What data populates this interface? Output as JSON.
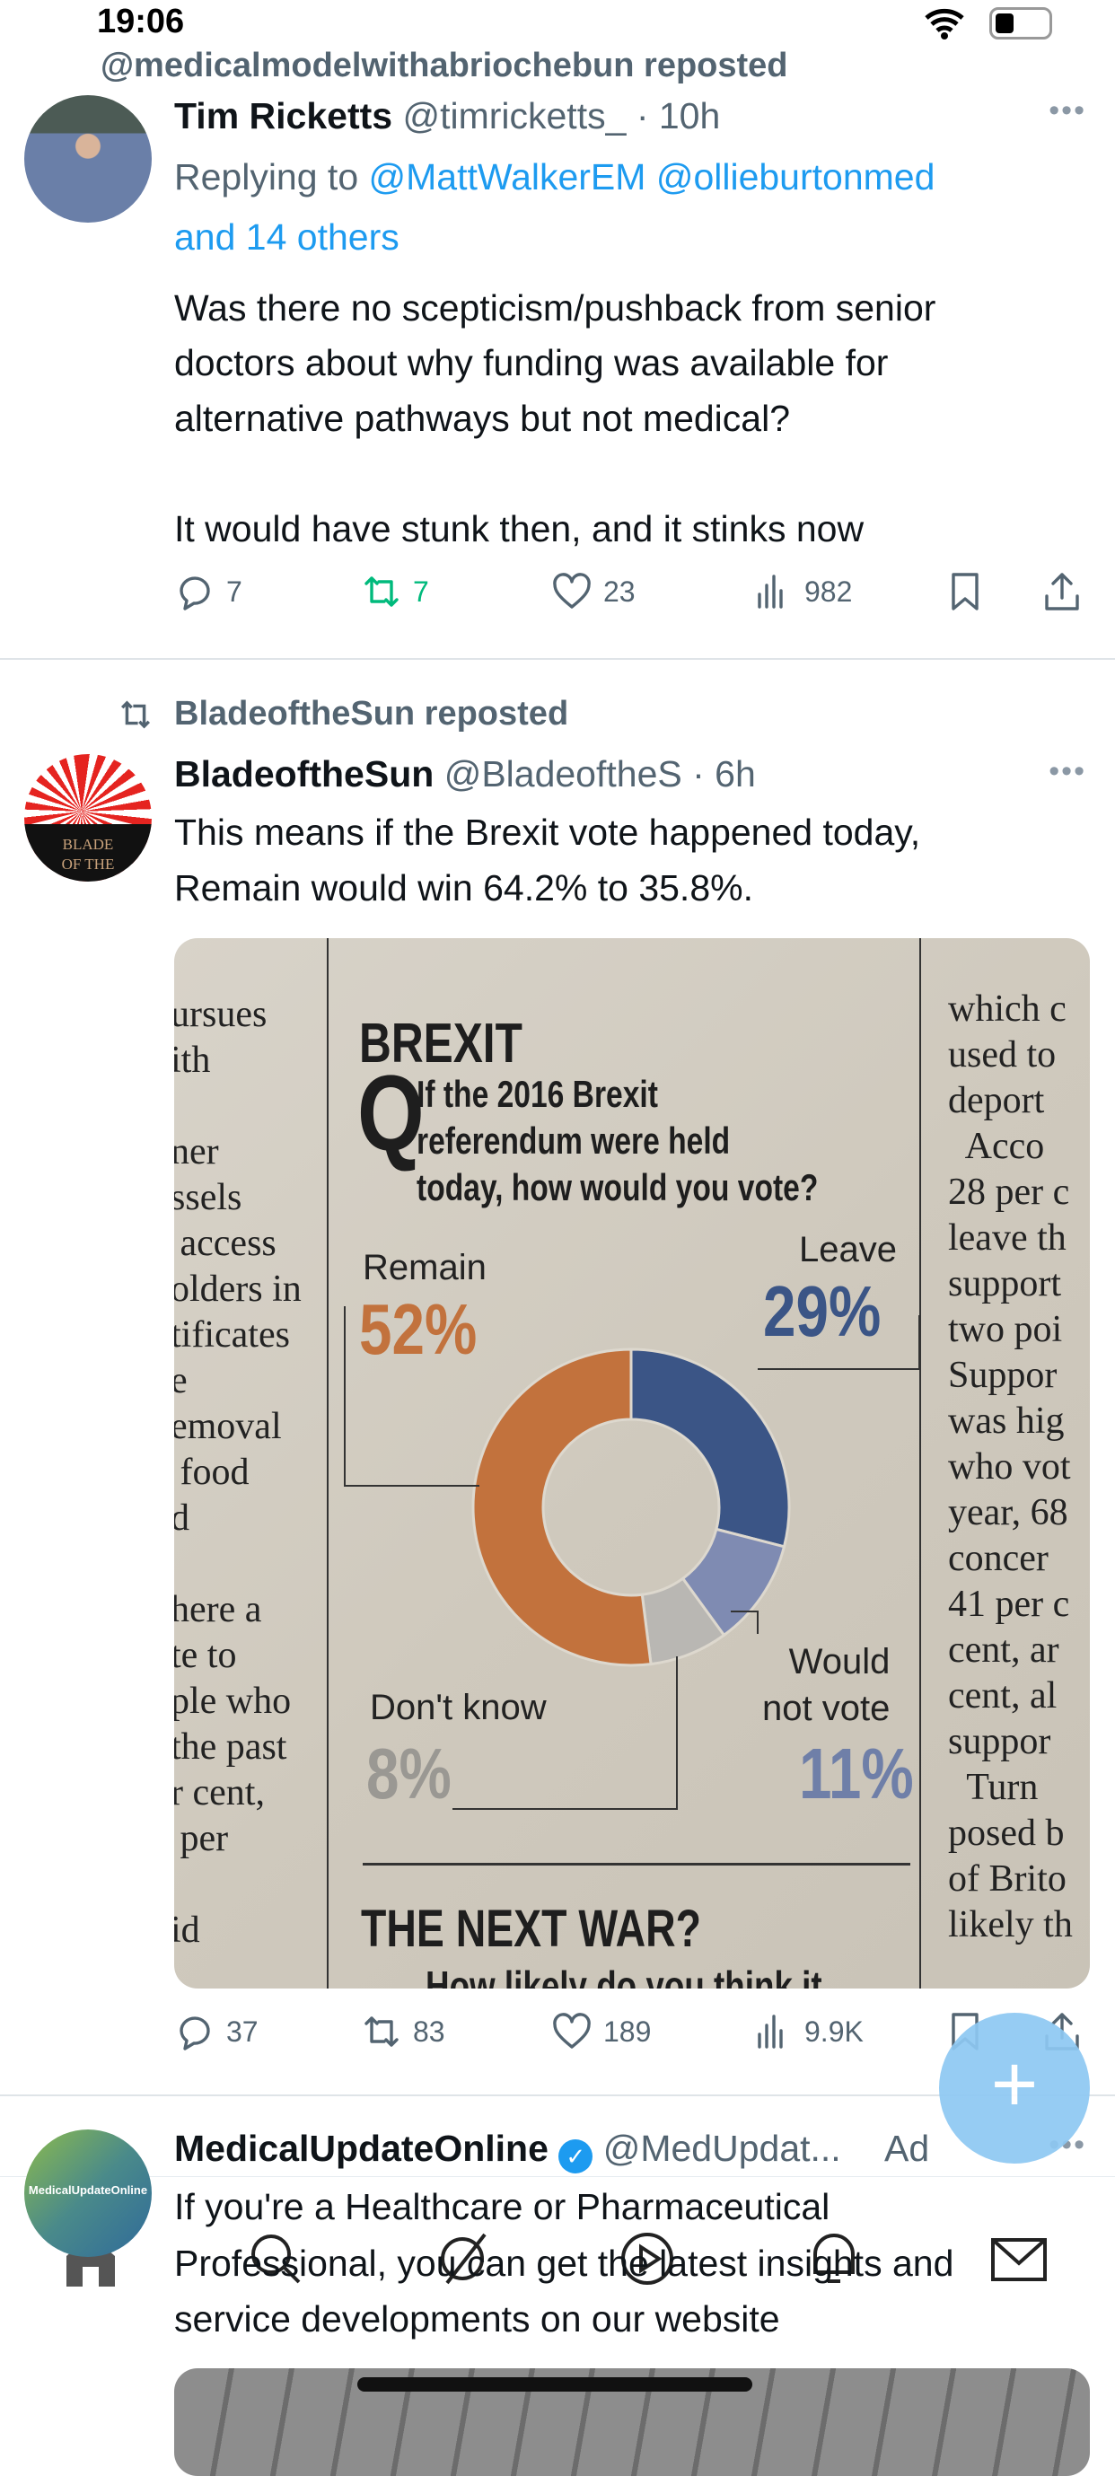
{
  "status_bar": {
    "time": "19:06",
    "wifi_icon": "wifi-icon",
    "battery_icon": "battery-icon"
  },
  "top_repost": {
    "text": "@medicalmodelwithabriochebun reposted"
  },
  "tweets": [
    {
      "display_name": "Tim Ricketts",
      "handle": "@timricketts_",
      "time": "· 10h",
      "replying_prefix": "Replying to",
      "replying_to": "@MattWalkerEM @ollieburtonmed",
      "replying_more": "and 14 others",
      "body": [
        "Was there no scepticism/pushback from senior",
        "doctors about why funding was available for",
        "alternative pathways but not medical?",
        "It would have stunk then, and it stinks now"
      ],
      "replies": "7",
      "reposts": "7",
      "likes": "23",
      "views": "982",
      "reposted_by_me": true
    },
    {
      "repost_label": "BladeoftheSun reposted",
      "display_name": "BladeoftheSun",
      "handle": "@BladeoftheS",
      "time": "· 6h",
      "avatar_text": [
        "BLADE",
        "OF THE"
      ],
      "body": [
        "This means if the Brexit vote happened today,",
        "Remain would win 64.2% to 35.8%."
      ],
      "replies": "37",
      "reposts": "83",
      "likes": "189",
      "views": "9.9K"
    },
    {
      "display_name": "MedicalUpdateOnline",
      "verified": true,
      "handle": "@MedUpdat...",
      "ad_label": "Ad",
      "avatar_text": "MedicalUpdateOnline",
      "body": [
        "If you're a Healthcare or Pharmaceutical",
        "Professional, you can get the latest insights and",
        "service developments on our website"
      ]
    }
  ],
  "newspaper": {
    "heading": "BREXIT",
    "q_mark": "Q",
    "question": [
      "If the 2016 Brexit",
      "referendum were held",
      "today, how would you vote?"
    ],
    "next_heading": "THE NEXT WAR?",
    "next_question": "How likely do you think it",
    "left_column": [
      "ursues",
      "ith",
      "",
      "ner",
      "ssels",
      " access",
      "olders in",
      "tificates",
      "e",
      "emoval",
      " food",
      "d",
      "",
      "here a",
      "te to",
      "ple who",
      "the past",
      "r cent,",
      " per",
      "",
      "id"
    ],
    "right_column": [
      "which c",
      "used to",
      "deport",
      "  Acco",
      "28 per c",
      "leave th",
      "support",
      "two poi",
      "Suppor",
      "was hig",
      "who vot",
      "year, 68",
      "concer",
      "41 per c",
      "cent, ar",
      "cent, al",
      "suppor",
      "  Turn",
      "posed b",
      "of Brito",
      "likely th"
    ],
    "chart_data": {
      "type": "pie",
      "donut": true,
      "title": "If the 2016 Brexit referendum were held today, how would you vote?",
      "categories": [
        "Leave",
        "Would not vote",
        "Don't know",
        "Remain"
      ],
      "values": [
        29,
        11,
        8,
        52
      ],
      "labels": [
        "29%",
        "11%",
        "8%",
        "52%"
      ],
      "label_names": [
        "Leave",
        "Would\nnot vote",
        "Don't know",
        "Remain"
      ],
      "colors": [
        "#3b5586",
        "#7f8bb2",
        "#b9b7b3",
        "#c2723d"
      ]
    }
  },
  "fab": {
    "label": "+",
    "icon": "plus-icon"
  },
  "colors": {
    "accent": "#1d9bf0",
    "repost_active": "#00ba7c",
    "fab": "#8ec8f3"
  },
  "tabbar": [
    "home-icon",
    "search-icon",
    "grok-icon",
    "spaces-icon",
    "notifications-icon",
    "messages-icon"
  ]
}
